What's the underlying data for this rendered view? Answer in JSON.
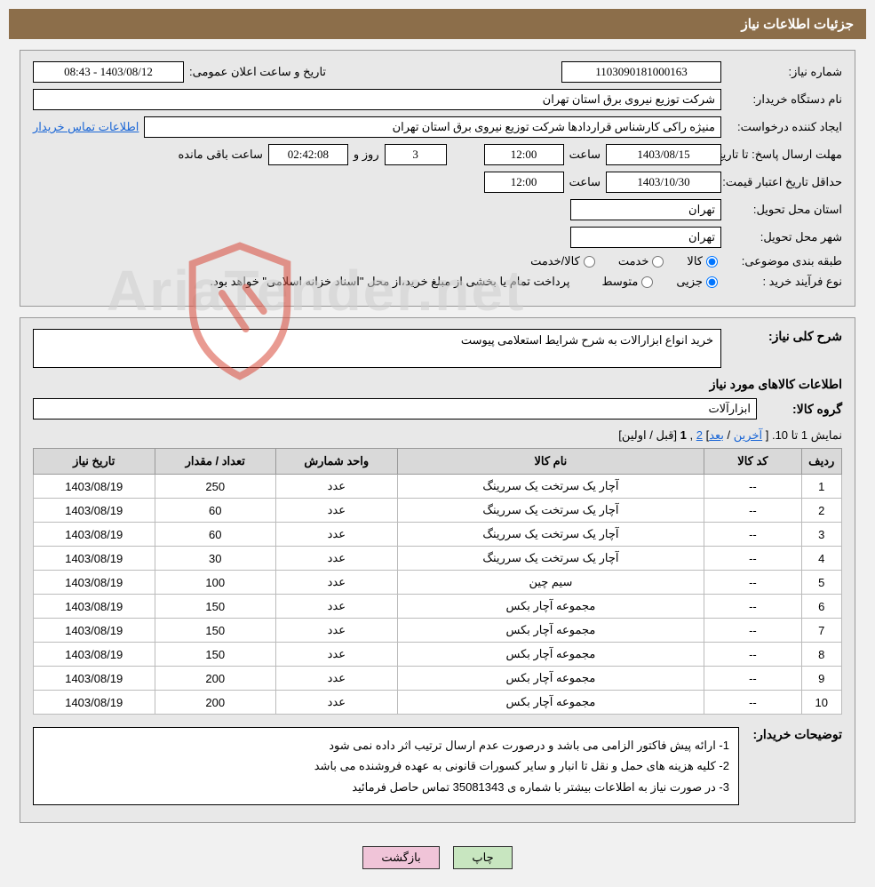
{
  "header": {
    "title": "جزئیات اطلاعات نیاز"
  },
  "fields": {
    "need_no_label": "شماره نیاز:",
    "need_no": "1103090181000163",
    "announce_label": "تاریخ و ساعت اعلان عمومی:",
    "announce_value": "1403/08/12 - 08:43",
    "buyer_org_label": "نام دستگاه خریدار:",
    "buyer_org": "شرکت توزیع نیروی برق استان تهران",
    "requester_label": "ایجاد کننده درخواست:",
    "requester": "منیژه راکی کارشناس قراردادها شرکت توزیع نیروی برق استان تهران",
    "buyer_contact_link": "اطلاعات تماس خریدار",
    "deadline_label": "مهلت ارسال پاسخ: تا تاریخ:",
    "deadline_date": "1403/08/15",
    "time_label": "ساعت",
    "deadline_time": "12:00",
    "days_remain": "3",
    "days_and_label": "روز و",
    "time_remain": "02:42:08",
    "remain_label": "ساعت باقی مانده",
    "validity_label": "حداقل تاریخ اعتبار قیمت: تا تاریخ:",
    "validity_date": "1403/10/30",
    "validity_time": "12:00",
    "delivery_prov_label": "استان محل تحویل:",
    "delivery_prov": "تهران",
    "delivery_city_label": "شهر محل تحویل:",
    "delivery_city": "تهران",
    "category_label": "طبقه بندی موضوعی:",
    "cat_goods": "کالا",
    "cat_service": "خدمت",
    "cat_goods_service": "کالا/خدمت",
    "purchase_type_label": "نوع فرآیند خرید :",
    "pt_partial": "جزیی",
    "pt_medium": "متوسط",
    "purchase_note": "پرداخت تمام یا بخشی از مبلغ خرید،از محل \"اسناد خزانه اسلامی\" خواهد بود."
  },
  "need": {
    "desc_label": "شرح کلی نیاز:",
    "desc": "خرید انواع ابزارالات به شرح شرایط استعلامی پیوست",
    "items_header": "اطلاعات کالاهای مورد نیاز",
    "group_label": "گروه کالا:",
    "group": "ابزارآلات"
  },
  "pagination": {
    "text_prefix": "نمایش 1 تا 10. [ ",
    "last": "آخرین",
    "sep1": " / ",
    "next": "بعد",
    "sep2": "] ",
    "p2": "2",
    "comma": " ,",
    "p1": "1",
    "sep3": " [",
    "prev": "قبل",
    "sep4": " / ",
    "first": "اولین",
    "text_suffix": "]"
  },
  "table": {
    "headers": [
      "ردیف",
      "کد کالا",
      "نام کالا",
      "واحد شمارش",
      "تعداد / مقدار",
      "تاریخ نیاز"
    ],
    "rows": [
      [
        "1",
        "--",
        "آچار یک سرتخت یک سررینگ",
        "عدد",
        "250",
        "1403/08/19"
      ],
      [
        "2",
        "--",
        "آچار یک سرتخت یک سررینگ",
        "عدد",
        "60",
        "1403/08/19"
      ],
      [
        "3",
        "--",
        "آچار یک سرتخت یک سررینگ",
        "عدد",
        "60",
        "1403/08/19"
      ],
      [
        "4",
        "--",
        "آچار یک سرتخت یک سررینگ",
        "عدد",
        "30",
        "1403/08/19"
      ],
      [
        "5",
        "--",
        "سیم چین",
        "عدد",
        "100",
        "1403/08/19"
      ],
      [
        "6",
        "--",
        "مجموعه آچار بکس",
        "عدد",
        "150",
        "1403/08/19"
      ],
      [
        "7",
        "--",
        "مجموعه آچار بکس",
        "عدد",
        "150",
        "1403/08/19"
      ],
      [
        "8",
        "--",
        "مجموعه آچار بکس",
        "عدد",
        "150",
        "1403/08/19"
      ],
      [
        "9",
        "--",
        "مجموعه آچار بکس",
        "عدد",
        "200",
        "1403/08/19"
      ],
      [
        "10",
        "--",
        "مجموعه آچار بکس",
        "عدد",
        "200",
        "1403/08/19"
      ]
    ]
  },
  "notes": {
    "label": "توضیحات خریدار:",
    "line1": "1- ارائه پیش فاکتور الزامی می باشد و درصورت عدم ارسال ترتیب اثر داده نمی شود",
    "line2": "2- کلیه هزینه های حمل و نقل تا انبار و سایر کسورات قانونی به عهده فروشنده می باشد",
    "line3": "3- در صورت نیاز به اطلاعات بیشتر با شماره ی 35081343 تماس حاصل فرمائید"
  },
  "buttons": {
    "print": "چاپ",
    "back": "بازگشت"
  },
  "colors": {
    "header_bg": "#8c6e4a",
    "panel_bg": "#e8e8e8",
    "th_bg": "#d9d9d9",
    "link": "#1a66d6",
    "btn_print": "#c8e6c0",
    "btn_back": "#f0c4d8"
  }
}
